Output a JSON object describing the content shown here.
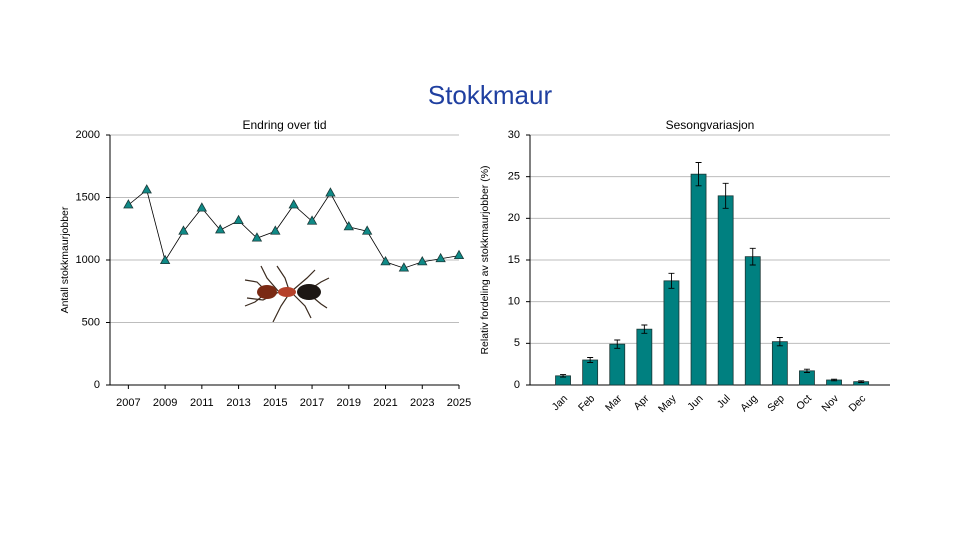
{
  "title": "Stokkmaur",
  "chart_data": [
    {
      "type": "line",
      "title": "Endring over tid",
      "y_label": "Antall stokkmaurjobber",
      "x": [
        2007,
        2008,
        2009,
        2010,
        2011,
        2012,
        2013,
        2014,
        2015,
        2016,
        2017,
        2018,
        2019,
        2020,
        2021,
        2022,
        2023,
        2024,
        2025
      ],
      "values": [
        1440,
        1560,
        995,
        1230,
        1415,
        1240,
        1315,
        1175,
        1230,
        1440,
        1310,
        1535,
        1265,
        1230,
        985,
        935,
        985,
        1010,
        1035
      ],
      "color": "#0f8a87",
      "line_color": "#000000",
      "xlim": [
        2006,
        2025
      ],
      "xticks": [
        2007,
        2009,
        2011,
        2013,
        2015,
        2017,
        2019,
        2021,
        2023,
        2025
      ],
      "ylim": [
        0,
        2000
      ],
      "yticks": [
        0,
        500,
        1000,
        1500,
        2000
      ],
      "grid": true
    },
    {
      "type": "bar",
      "title": "Sesongvariasjon",
      "y_label": "Relativ fordeling av stokkmaurjobber (%)",
      "categories": [
        "Jan",
        "Feb",
        "Mar",
        "Apr",
        "May",
        "Jun",
        "Jul",
        "Aug",
        "Sep",
        "Oct",
        "Nov",
        "Dec"
      ],
      "values": [
        1.1,
        3.0,
        4.9,
        6.7,
        12.5,
        25.3,
        22.7,
        15.4,
        5.2,
        1.7,
        0.6,
        0.4
      ],
      "errors": [
        0.15,
        0.3,
        0.5,
        0.5,
        0.9,
        1.4,
        1.5,
        1.0,
        0.5,
        0.2,
        0.1,
        0.1
      ],
      "color": "#008080",
      "ylim": [
        0,
        30
      ],
      "yticks": [
        0,
        5,
        10,
        15,
        20,
        25,
        30
      ],
      "grid": true
    }
  ]
}
